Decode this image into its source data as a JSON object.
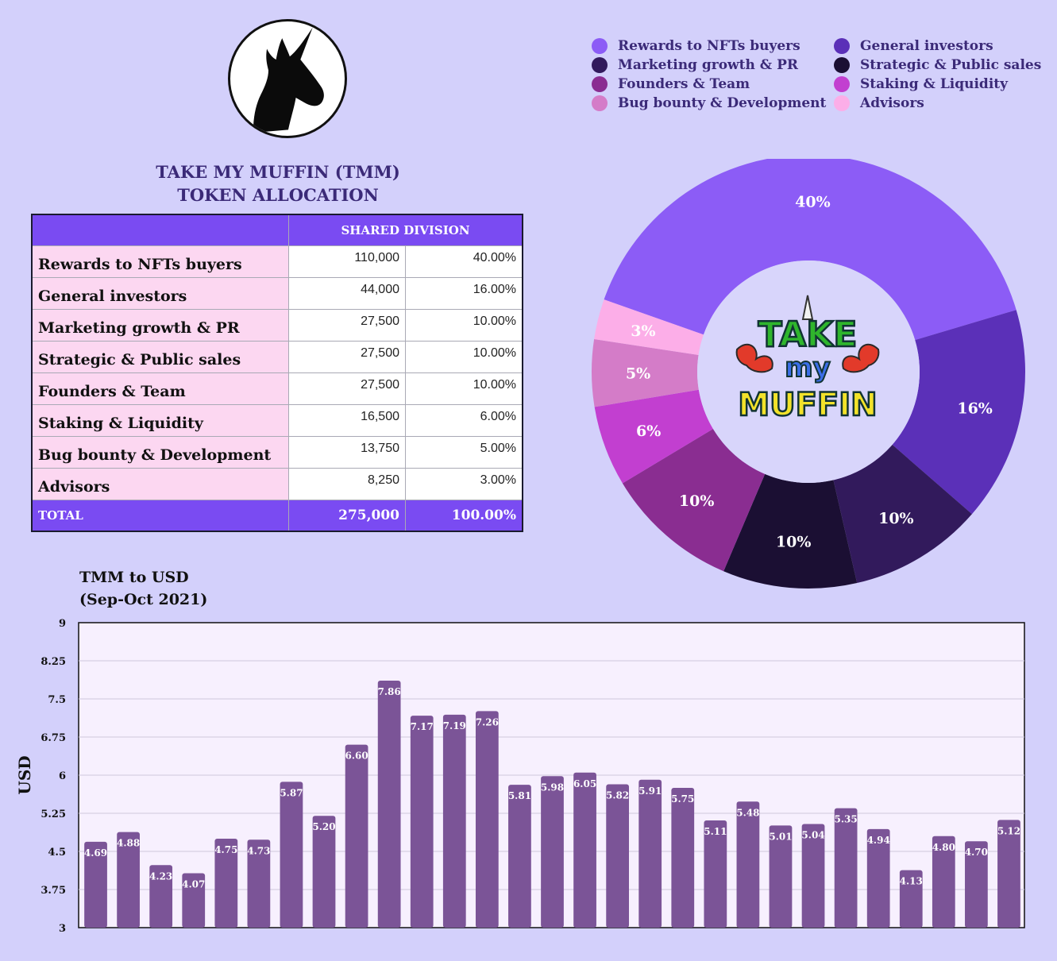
{
  "title_lines": [
    "TAKE MY MUFFIN (TMM)",
    "TOKEN ALLOCATION"
  ],
  "table": {
    "header": "SHARED DIVISION",
    "rows": [
      {
        "label": "Rewards to NFTs buyers",
        "amount": "110,000",
        "percent": "40.00%"
      },
      {
        "label": "General investors",
        "amount": "44,000",
        "percent": "16.00%"
      },
      {
        "label": "Marketing growth & PR",
        "amount": "27,500",
        "percent": "10.00%"
      },
      {
        "label": "Strategic & Public sales",
        "amount": "27,500",
        "percent": "10.00%"
      },
      {
        "label": "Founders & Team",
        "amount": "27,500",
        "percent": "10.00%"
      },
      {
        "label": "Staking & Liquidity",
        "amount": "16,500",
        "percent": "6.00%"
      },
      {
        "label": "Bug bounty & Development",
        "amount": "13,750",
        "percent": "5.00%"
      },
      {
        "label": "Advisors",
        "amount": "8,250",
        "percent": "3.00%"
      }
    ],
    "total": {
      "label": "TOTAL",
      "amount": "275,000",
      "percent": "100.00%"
    }
  },
  "logo_text": {
    "line1": "TAKE",
    "line2": "my",
    "line3": "MUFFIN"
  },
  "chart_data": [
    {
      "type": "pie",
      "donut": true,
      "legend_position": "top",
      "slices": [
        {
          "name": "Rewards to NFTs buyers",
          "value": 40,
          "label": "40%",
          "color": "#8c5cf6"
        },
        {
          "name": "General investors",
          "value": 16,
          "label": "16%",
          "color": "#5b30b8"
        },
        {
          "name": "Marketing growth & PR",
          "value": 10,
          "label": "10%",
          "color": "#321a5c"
        },
        {
          "name": "Strategic & Public sales",
          "value": 10,
          "label": "10%",
          "color": "#1b0f33"
        },
        {
          "name": "Founders & Team",
          "value": 10,
          "label": "10%",
          "color": "#8a2d91"
        },
        {
          "name": "Staking & Liquidity",
          "value": 6,
          "label": "6%",
          "color": "#c23fd0"
        },
        {
          "name": "Bug bounty & Development",
          "value": 5,
          "label": "5%",
          "color": "#d47cc8"
        },
        {
          "name": "Advisors",
          "value": 3,
          "label": "3%",
          "color": "#fcaee8"
        }
      ],
      "legend_order": [
        "Rewards to NFTs buyers",
        "General investors",
        "Marketing growth & PR",
        "Strategic & Public sales",
        "Founders & Team",
        "Staking & Liquidity",
        "Bug bounty & Development",
        "Advisors"
      ]
    },
    {
      "type": "bar",
      "title": "TMM to USD\n(Sep-Oct 2021)",
      "xlabel": "",
      "ylabel": "USD",
      "ylim": [
        3,
        9
      ],
      "yticks": [
        "3",
        "3.75",
        "4.5",
        "5.25",
        "6",
        "6.75",
        "7.5",
        "8.25",
        "9"
      ],
      "grid": true,
      "bar_color": "#7b5497",
      "values": [
        4.69,
        4.88,
        4.23,
        4.07,
        4.75,
        4.73,
        5.87,
        5.2,
        6.6,
        7.86,
        7.17,
        7.19,
        7.26,
        5.81,
        5.98,
        6.05,
        5.82,
        5.91,
        5.75,
        5.11,
        5.48,
        5.01,
        5.04,
        5.35,
        4.94,
        4.13,
        4.8,
        4.7,
        5.12
      ],
      "labels": [
        "4.69",
        "4.88",
        "4.23",
        "4.07",
        "4.75",
        "4.73",
        "5.87",
        "5.20",
        "6.60",
        "7.86",
        "7.17",
        "7.19",
        "7.26",
        "5.81",
        "5.98",
        "6.05",
        "5.82",
        "5.91",
        "5.75",
        "5.11",
        "5.48",
        "5.01",
        "5.04",
        "5.35",
        "4.94",
        "4.13",
        "4.80",
        "4.70",
        "5.12"
      ]
    }
  ]
}
